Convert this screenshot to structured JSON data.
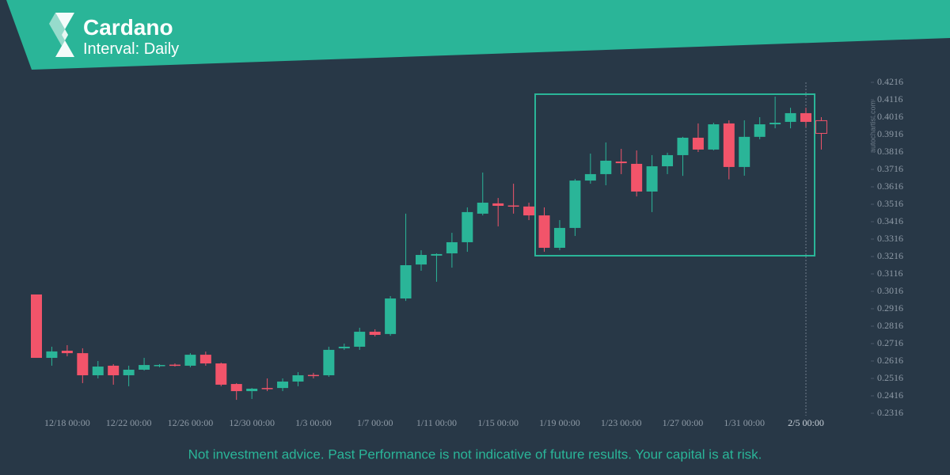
{
  "header": {
    "title": "Cardano",
    "subtitle": "Interval: Daily"
  },
  "watermark": "autochartist.com",
  "footer": "Not investment advice. Past Performance is not indicative of future results. Your capital is at risk.",
  "chart_data": {
    "type": "candlestick",
    "categories": [
      null,
      null,
      "12/18 00:00",
      null,
      null,
      null,
      "12/22 00:00",
      null,
      null,
      null,
      "12/26 00:00",
      null,
      null,
      null,
      "12/30 00:00",
      null,
      null,
      null,
      "1/3 00:00",
      null,
      null,
      null,
      "1/7 00:00",
      null,
      null,
      null,
      "1/11 00:00",
      null,
      null,
      null,
      "1/15 00:00",
      null,
      null,
      null,
      "1/19 00:00",
      null,
      null,
      null,
      "1/23 00:00",
      null,
      null,
      null,
      "1/27 00:00",
      null,
      null,
      null,
      "1/31 00:00",
      null,
      null,
      null,
      "2/5 00:00",
      null
    ],
    "series": [
      {
        "up_color": "#2ab598",
        "down_color": "#f2546a",
        "open": [
          0.2998,
          0.2634,
          0.2675,
          0.2661,
          0.2534,
          0.2589,
          0.2534,
          0.2566,
          0.2589,
          0.2595,
          0.2589,
          0.2652,
          0.2602,
          0.2484,
          0.2443,
          0.2461,
          0.2461,
          0.2498,
          0.2536,
          0.2534,
          0.2689,
          0.2698,
          0.2784,
          0.2771,
          0.2975,
          0.317,
          0.3221,
          0.3234,
          0.3298,
          0.3462,
          0.3521,
          0.3509,
          0.3503,
          0.3452,
          0.3266,
          0.338,
          0.3652,
          0.3689,
          0.3761,
          0.3748,
          0.3589,
          0.3734,
          0.3798,
          0.3898,
          0.383,
          0.398,
          0.373,
          0.3903,
          0.3975,
          0.3989,
          0.4039,
          0.3996
        ],
        "high": [
          0.2998,
          0.2698,
          0.2707,
          0.2689,
          0.2616,
          0.2598,
          0.2589,
          0.2634,
          0.2598,
          0.2602,
          0.2661,
          0.267,
          0.2607,
          0.2489,
          0.2461,
          0.2516,
          0.2516,
          0.2552,
          0.2548,
          0.2698,
          0.2716,
          0.2807,
          0.2798,
          0.2989,
          0.3462,
          0.3252,
          0.3234,
          0.3352,
          0.3498,
          0.3698,
          0.3552,
          0.3634,
          0.3525,
          0.3498,
          0.3425,
          0.3661,
          0.3807,
          0.3871,
          0.3834,
          0.3825,
          0.3798,
          0.3812,
          0.3903,
          0.398,
          0.3984,
          0.3998,
          0.3998,
          0.4016,
          0.4134,
          0.407,
          0.407,
          0.4016
        ],
        "low": [
          0.2634,
          0.2589,
          0.2643,
          0.2489,
          0.2516,
          0.248,
          0.2471,
          0.2561,
          0.258,
          0.2584,
          0.258,
          0.2589,
          0.2471,
          0.2393,
          0.2398,
          0.2443,
          0.2443,
          0.2471,
          0.2516,
          0.2525,
          0.268,
          0.268,
          0.2757,
          0.2761,
          0.2961,
          0.3134,
          0.3071,
          0.3152,
          0.3243,
          0.3452,
          0.3389,
          0.3462,
          0.3425,
          0.3243,
          0.3252,
          0.3334,
          0.3634,
          0.3625,
          0.3689,
          0.3561,
          0.3471,
          0.3689,
          0.3679,
          0.3816,
          0.3825,
          0.3659,
          0.368,
          0.3889,
          0.3952,
          0.3952,
          0.3961,
          0.383
        ],
        "close": [
          0.2634,
          0.2671,
          0.2661,
          0.2534,
          0.2584,
          0.2534,
          0.2566,
          0.2593,
          0.2593,
          0.2591,
          0.2652,
          0.2602,
          0.248,
          0.2443,
          0.2457,
          0.2457,
          0.2498,
          0.2534,
          0.2532,
          0.268,
          0.2698,
          0.2784,
          0.2766,
          0.2975,
          0.3166,
          0.3225,
          0.323,
          0.3298,
          0.3471,
          0.3525,
          0.3507,
          0.3505,
          0.3452,
          0.3266,
          0.338,
          0.3652,
          0.3689,
          0.3766,
          0.3752,
          0.3589,
          0.3734,
          0.3798,
          0.3898,
          0.383,
          0.3975,
          0.373,
          0.3903,
          0.3975,
          0.3984,
          0.4039,
          0.3989,
          0.3923
        ]
      }
    ],
    "ylim": [
      0.2316,
      0.4216
    ],
    "yticks": [
      0.2316,
      0.2416,
      0.2516,
      0.2616,
      0.2716,
      0.2816,
      0.2916,
      0.3016,
      0.3116,
      0.3216,
      0.3316,
      0.3416,
      0.3516,
      0.3616,
      0.3716,
      0.3816,
      0.3916,
      0.4016,
      0.4116,
      0.4216
    ],
    "grid": false
  }
}
